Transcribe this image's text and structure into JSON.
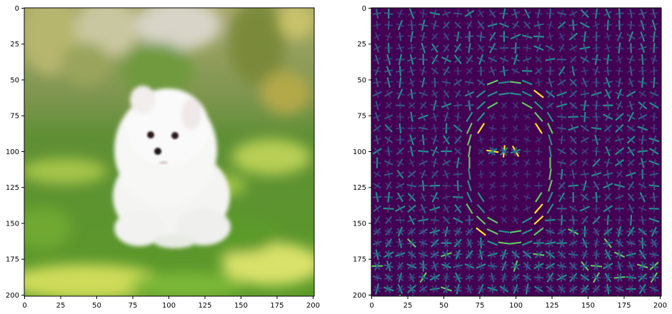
{
  "figure": {
    "panels": [
      "original-image",
      "hog-visualization"
    ]
  },
  "chart_data": [
    {
      "type": "image",
      "title": "",
      "subject": "white puppy sitting on grass",
      "xlabel": "",
      "ylabel": "",
      "xlim": [
        0,
        201
      ],
      "ylim": [
        201,
        0
      ],
      "xticks": [
        0,
        25,
        50,
        75,
        100,
        125,
        150,
        175,
        200
      ],
      "yticks": [
        0,
        25,
        50,
        75,
        100,
        125,
        150,
        175,
        200
      ],
      "xtick_labels": [
        "0",
        "25",
        "50",
        "75",
        "100",
        "125",
        "150",
        "175",
        "200"
      ],
      "ytick_labels": [
        "0",
        "25",
        "50",
        "75",
        "100",
        "125",
        "150",
        "175",
        "200"
      ],
      "colors": {
        "grass": "#5f9a2a",
        "grass_light": "#a8c84a",
        "background_top": "#8a9a5a",
        "puppy": "#f6f6f6"
      }
    },
    {
      "type": "image",
      "title": "",
      "subject": "HOG (histogram of oriented gradients) visualization of the puppy image",
      "colormap": "viridis",
      "cell_size": 8,
      "xlabel": "",
      "ylabel": "",
      "xlim": [
        0,
        201
      ],
      "ylim": [
        201,
        0
      ],
      "xticks": [
        0,
        25,
        50,
        75,
        100,
        125,
        150,
        175,
        200
      ],
      "yticks": [
        0,
        25,
        50,
        75,
        100,
        125,
        150,
        175,
        200
      ],
      "xtick_labels": [
        "0",
        "25",
        "50",
        "75",
        "100",
        "125",
        "150",
        "175",
        "200"
      ],
      "ytick_labels": [
        "0",
        "25",
        "50",
        "75",
        "100",
        "125",
        "150",
        "175",
        "200"
      ],
      "colors": {
        "background": "#440154",
        "low": "#3b528b",
        "mid": "#21918c",
        "high": "#5ec962",
        "peak": "#fde725"
      }
    }
  ]
}
